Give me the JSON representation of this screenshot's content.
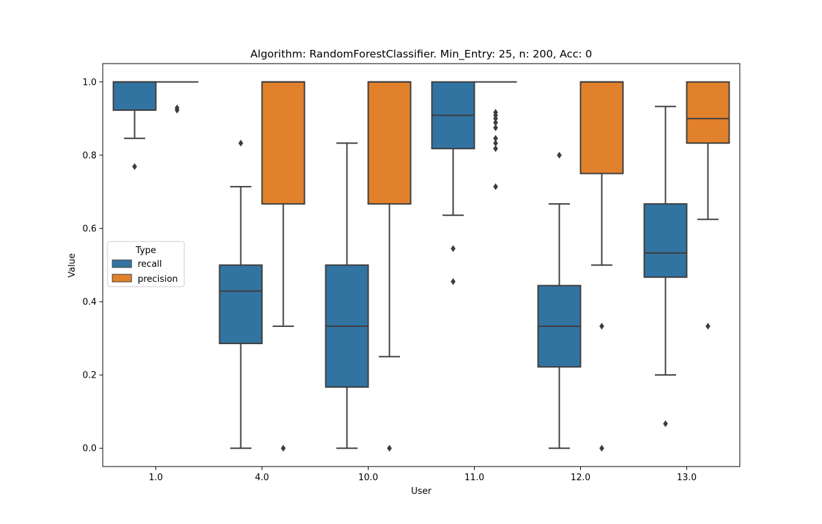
{
  "chart_data": {
    "type": "box",
    "title": "Algorithm: RandomForestClassifier. Min_Entry: 25, n: 200, Acc: 0",
    "xlabel": "User",
    "ylabel": "Value",
    "ylim": [
      -0.05,
      1.05
    ],
    "yticks": [
      "0.0",
      "0.2",
      "0.4",
      "0.6",
      "0.8",
      "1.0"
    ],
    "categories": [
      "1.0",
      "4.0",
      "10.0",
      "11.0",
      "12.0",
      "13.0"
    ],
    "legend": {
      "title": "Type",
      "placement": "center-left"
    },
    "grid": false,
    "series": [
      {
        "name": "recall",
        "color": "#3274a1",
        "boxes": [
          {
            "whislo": 0.846,
            "q1": 0.923,
            "med": 1.0,
            "q3": 1.0,
            "whishi": 1.0,
            "fliers": [
              0.769
            ]
          },
          {
            "whislo": 0.0,
            "q1": 0.286,
            "med": 0.429,
            "q3": 0.5,
            "whishi": 0.714,
            "fliers": [
              0.833
            ]
          },
          {
            "whislo": 0.0,
            "q1": 0.167,
            "med": 0.333,
            "q3": 0.5,
            "whishi": 0.833,
            "fliers": []
          },
          {
            "whislo": 0.636,
            "q1": 0.818,
            "med": 0.909,
            "q3": 1.0,
            "whishi": 1.0,
            "fliers": [
              0.545,
              0.455
            ]
          },
          {
            "whislo": 0.0,
            "q1": 0.222,
            "med": 0.333,
            "q3": 0.444,
            "whishi": 0.667,
            "fliers": [
              0.8
            ]
          },
          {
            "whislo": 0.2,
            "q1": 0.467,
            "med": 0.533,
            "q3": 0.667,
            "whishi": 0.933,
            "fliers": [
              0.067
            ]
          }
        ]
      },
      {
        "name": "precision",
        "color": "#e1812c",
        "boxes": [
          {
            "whislo": 1.0,
            "q1": 1.0,
            "med": 1.0,
            "q3": 1.0,
            "whishi": 1.0,
            "fliers": [
              0.929,
              0.923
            ]
          },
          {
            "whislo": 0.333,
            "q1": 0.667,
            "med": 1.0,
            "q3": 1.0,
            "whishi": 1.0,
            "fliers": [
              0.0
            ]
          },
          {
            "whislo": 0.25,
            "q1": 0.667,
            "med": 1.0,
            "q3": 1.0,
            "whishi": 1.0,
            "fliers": [
              0.0
            ]
          },
          {
            "whislo": 1.0,
            "q1": 1.0,
            "med": 1.0,
            "q3": 1.0,
            "whishi": 1.0,
            "fliers": [
              0.917,
              0.909,
              0.9,
              0.889,
              0.875,
              0.846,
              0.833,
              0.818,
              0.714
            ]
          },
          {
            "whislo": 0.5,
            "q1": 0.75,
            "med": 1.0,
            "q3": 1.0,
            "whishi": 1.0,
            "fliers": [
              0.333,
              0.0
            ]
          },
          {
            "whislo": 0.625,
            "q1": 0.833,
            "med": 0.9,
            "q3": 1.0,
            "whishi": 1.0,
            "fliers": [
              0.333
            ]
          }
        ]
      }
    ]
  }
}
